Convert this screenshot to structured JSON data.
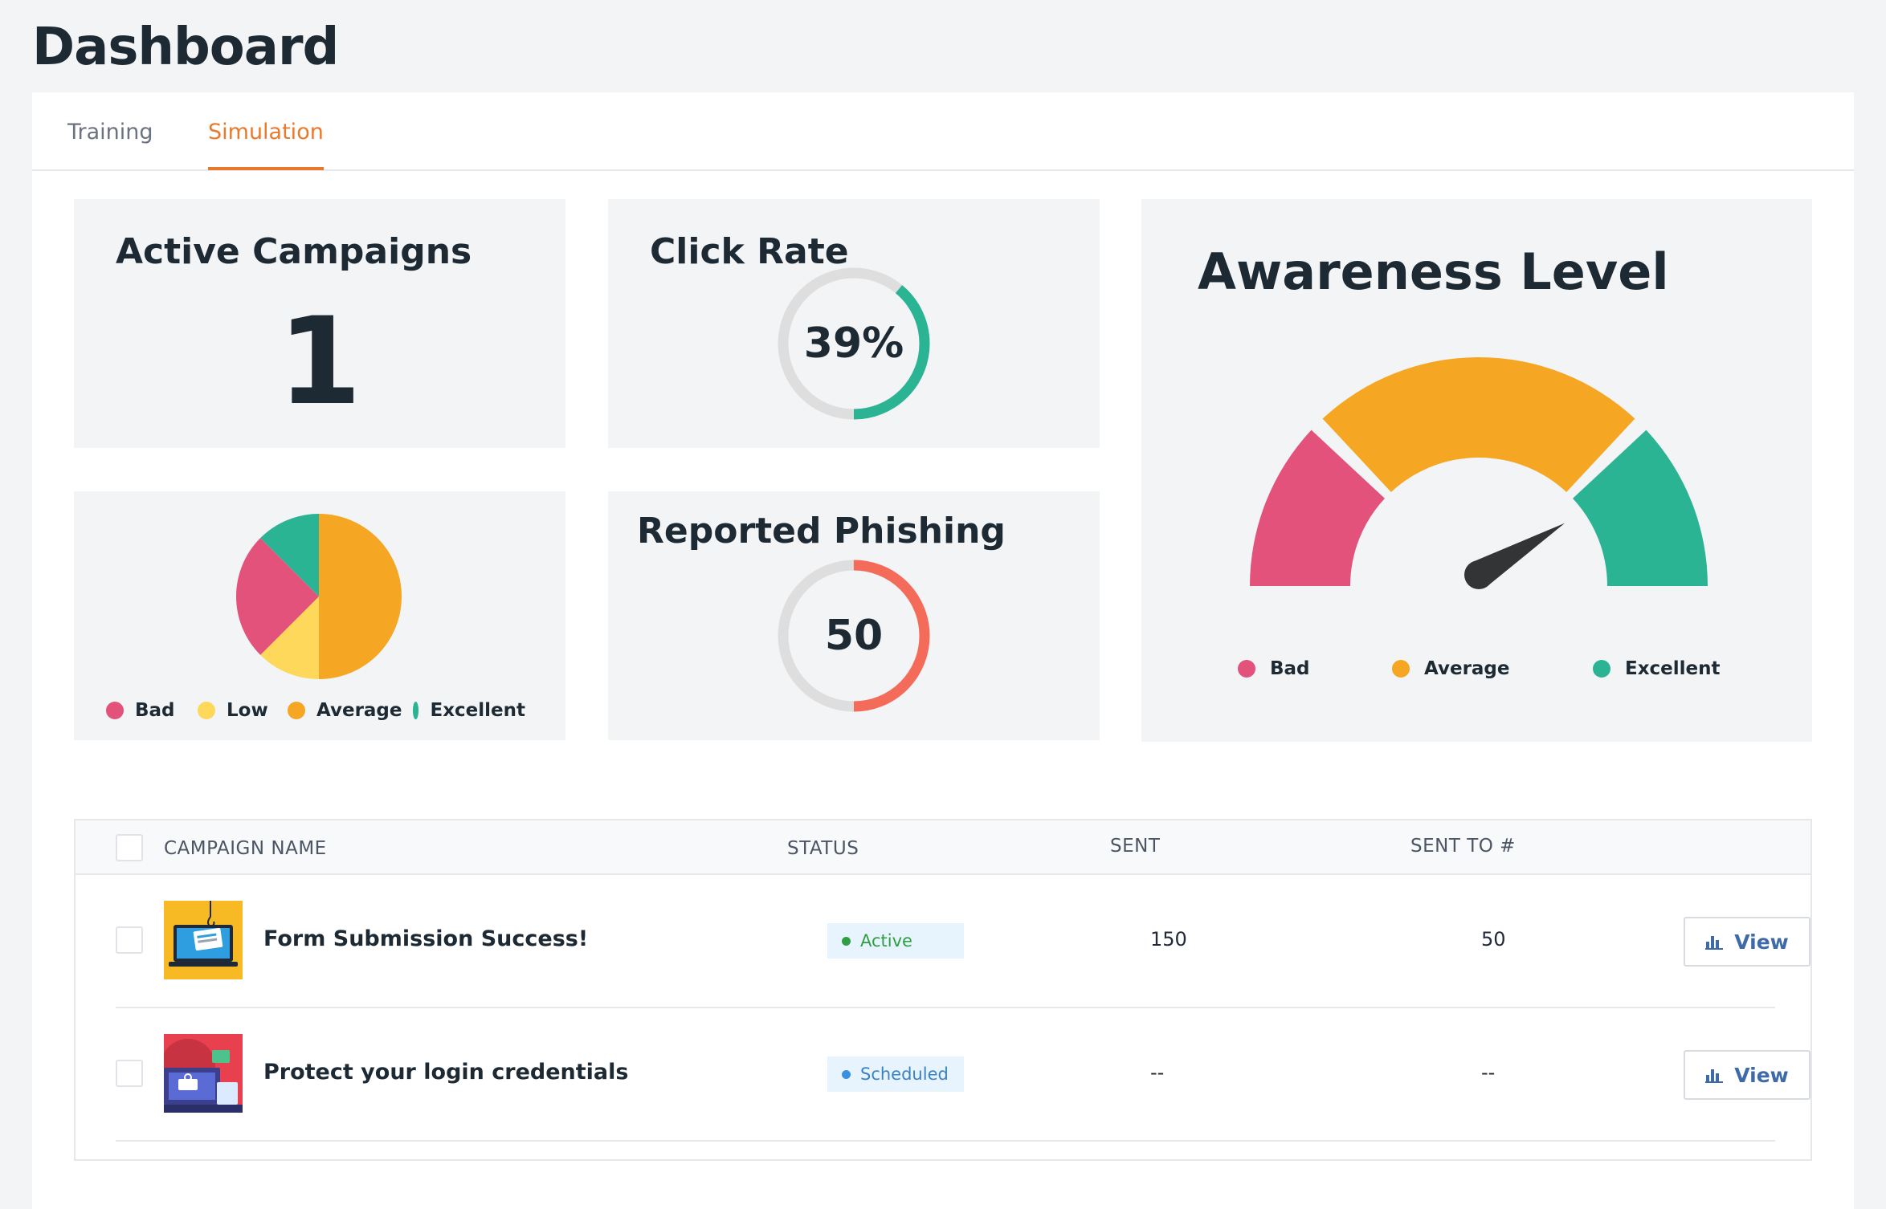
{
  "page": {
    "title": "Dashboard"
  },
  "tabs": [
    {
      "label": "Training",
      "active": false
    },
    {
      "label": "Simulation",
      "active": true
    }
  ],
  "cards": {
    "active_campaigns": {
      "title": "Active Campaigns",
      "value": "1"
    },
    "click_rate": {
      "title": "Click Rate",
      "value": "39%",
      "percent": 39,
      "color": "#2bb494"
    },
    "reported_phishing": {
      "title": "Reported Phishing",
      "value": "50",
      "percent": 50,
      "color": "#f46b5a"
    },
    "awareness_level": {
      "title": "Awareness Level",
      "needle_percent": 85
    }
  },
  "chart_data": [
    {
      "type": "pie",
      "categories": [
        "Bad",
        "Low",
        "Average",
        "Excellent"
      ],
      "values": [
        25,
        12.5,
        50,
        12.5
      ],
      "colors": [
        "#e3527a",
        "#fdd85a",
        "#f5a623",
        "#2bb494"
      ],
      "legend": "bottom"
    }
  ],
  "gauge_legend": [
    {
      "label": "Bad",
      "color": "#e3527a"
    },
    {
      "label": "Average",
      "color": "#f5a623"
    },
    {
      "label": "Excellent",
      "color": "#2bb494"
    }
  ],
  "table": {
    "headers": {
      "name": "CAMPAIGN NAME",
      "status": "STATUS",
      "sent": "SENT",
      "sent_to": "SENT TO #"
    },
    "rows": [
      {
        "name": "Form Submission Success!",
        "status": "Active",
        "sent": "150",
        "sent_to": "50",
        "action": "View",
        "thumb": "phishing-laptop-thumbnail"
      },
      {
        "name": "Protect your login credentials",
        "status": "Scheduled",
        "sent": "--",
        "sent_to": "--",
        "action": "View",
        "thumb": "login-credentials-thumbnail"
      }
    ],
    "status_colors": {
      "Active": {
        "bg": "#e8f4fd",
        "fg": "#2f9e44",
        "dot": "#2f9e44"
      },
      "Scheduled": {
        "bg": "#e8f4fd",
        "fg": "#3b82c4",
        "dot": "#3b8fe0"
      }
    }
  }
}
